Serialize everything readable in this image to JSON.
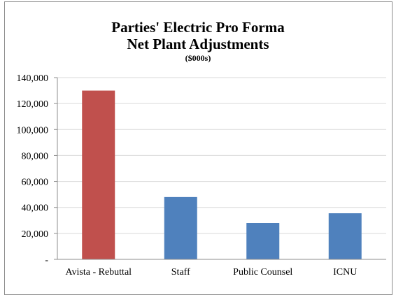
{
  "chart_data": {
    "type": "bar",
    "title": "Parties' Electric Pro Forma",
    "subtitle": "Net Plant Adjustments",
    "units": "($000s)",
    "categories": [
      "Avista - Rebuttal",
      "Staff",
      "Public Counsel",
      "ICNU"
    ],
    "values": [
      130000,
      48000,
      28000,
      35500
    ],
    "bar_colors": [
      "#c0504d",
      "#4f81bd",
      "#4f81bd",
      "#4f81bd"
    ],
    "ylim": [
      0,
      140000
    ],
    "yticks": [
      0,
      20000,
      40000,
      60000,
      80000,
      100000,
      120000,
      140000
    ],
    "ytick_labels": [
      "-",
      "20,000",
      "40,000",
      "60,000",
      "80,000",
      "100,000",
      "120,000",
      "140,000"
    ],
    "grid": true,
    "legend": "none"
  }
}
